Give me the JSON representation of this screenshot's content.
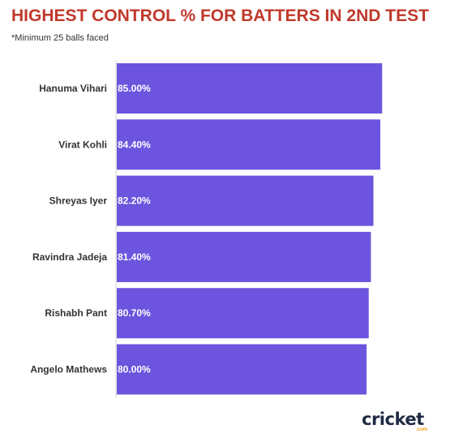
{
  "chart_data": {
    "type": "bar",
    "orientation": "horizontal",
    "title": "HIGHEST CONTROL % FOR BATTERS IN 2ND TEST",
    "subtitle": "*Minimum 25 balls faced",
    "categories": [
      "Hanuma Vihari",
      "Virat Kohli",
      "Shreyas Iyer",
      "Ravindra Jadeja",
      "Rishabh Pant",
      "Angelo Mathews"
    ],
    "values": [
      85.0,
      84.4,
      82.2,
      81.4,
      80.7,
      80.0
    ],
    "value_labels": [
      "85.00%",
      "84.40%",
      "82.20%",
      "81.40%",
      "80.70%",
      "80.00%"
    ],
    "xlim": [
      0,
      100
    ],
    "grid": false,
    "bar_color": "#6c54de",
    "title_color": "#c0392b"
  },
  "brand": {
    "name": "cricket",
    "suffix": ".com",
    "accent_color": "#f39c12"
  }
}
